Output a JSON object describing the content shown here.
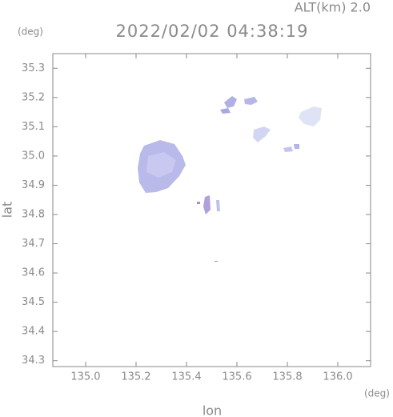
{
  "chart_data": {
    "type": "map",
    "title": "2022/02/02 04:38:19",
    "subtitle": "ALT(km) 2.0",
    "x_label": "lon",
    "y_label": "lat",
    "x_unit": "(deg)",
    "y_unit": "(deg)",
    "xlim": [
      134.87,
      136.13
    ],
    "ylim": [
      34.28,
      35.35
    ],
    "xticks": [
      {
        "value": 135,
        "label": "135.0"
      },
      135.2,
      135.4,
      135.6,
      135.8,
      {
        "value": 136,
        "label": "136.0"
      }
    ],
    "yticks": [
      34.3,
      34.4,
      34.5,
      34.6,
      34.7,
      34.8,
      34.9,
      {
        "value": 35,
        "label": "35.0"
      },
      35.1,
      35.2,
      35.3
    ]
  }
}
